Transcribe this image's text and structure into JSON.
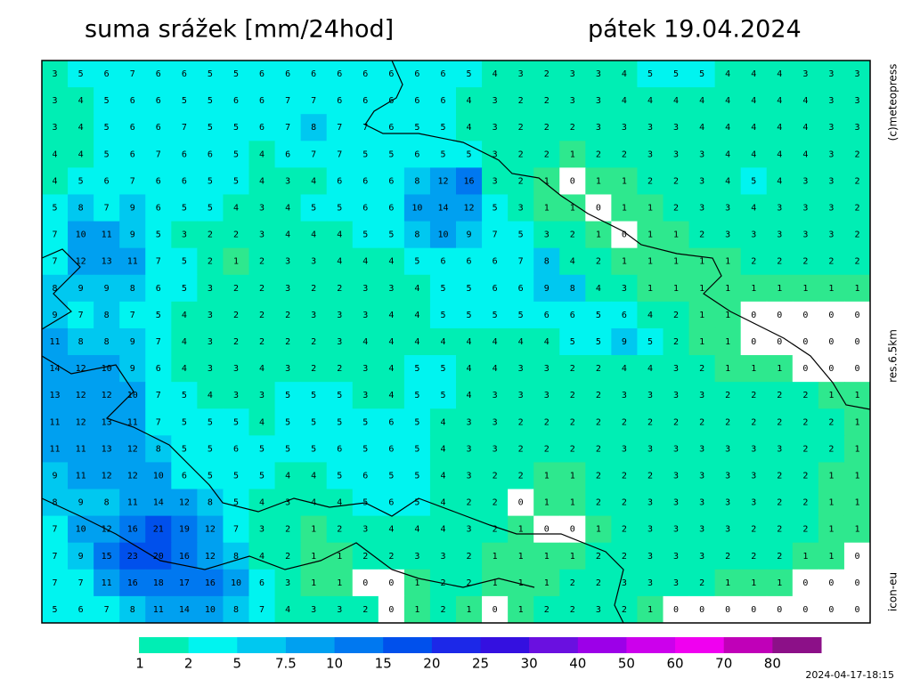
{
  "header": {
    "title": "suma srážek [mm/24hod]",
    "date": "pátek 19.04.2024"
  },
  "side_labels": {
    "copyright": "(c)meteopress",
    "resolution": "res.6.5km",
    "model": "icon-eu"
  },
  "timestamp": "2024-04-17-18:15",
  "grid": {
    "rows": [
      [
        3,
        5,
        6,
        7,
        6,
        6,
        5,
        5,
        6,
        6,
        6,
        6,
        6,
        6,
        6,
        6,
        5,
        4,
        3,
        2,
        3,
        3,
        4,
        5,
        5,
        5,
        4,
        4,
        4,
        3,
        3,
        3
      ],
      [
        3,
        4,
        5,
        6,
        6,
        5,
        5,
        6,
        6,
        7,
        7,
        6,
        6,
        6,
        6,
        6,
        4,
        3,
        2,
        2,
        3,
        3,
        4,
        4,
        4,
        4,
        4,
        4,
        4,
        4,
        3,
        3
      ],
      [
        3,
        4,
        5,
        6,
        6,
        7,
        5,
        5,
        6,
        7,
        8,
        7,
        7,
        6,
        5,
        5,
        4,
        3,
        2,
        2,
        2,
        3,
        3,
        3,
        3,
        4,
        4,
        4,
        4,
        4,
        3,
        3
      ],
      [
        4,
        4,
        5,
        6,
        7,
        6,
        6,
        5,
        4,
        6,
        7,
        7,
        5,
        5,
        6,
        5,
        5,
        3,
        2,
        2,
        1,
        2,
        2,
        3,
        3,
        3,
        4,
        4,
        4,
        4,
        3,
        2
      ],
      [
        4,
        5,
        6,
        7,
        6,
        6,
        5,
        5,
        4,
        3,
        4,
        6,
        6,
        6,
        8,
        12,
        16,
        3,
        2,
        1,
        0,
        1,
        1,
        2,
        2,
        3,
        4,
        5,
        4,
        3,
        3,
        2
      ],
      [
        5,
        8,
        7,
        9,
        6,
        5,
        5,
        4,
        3,
        4,
        5,
        5,
        6,
        6,
        10,
        14,
        12,
        5,
        3,
        1,
        1,
        0,
        1,
        1,
        2,
        3,
        3,
        4,
        3,
        3,
        3,
        2
      ],
      [
        7,
        10,
        11,
        9,
        5,
        3,
        2,
        2,
        3,
        4,
        4,
        4,
        5,
        5,
        8,
        10,
        9,
        7,
        5,
        3,
        2,
        1,
        0,
        1,
        1,
        2,
        3,
        3,
        3,
        3,
        3,
        2
      ],
      [
        7,
        12,
        13,
        11,
        7,
        5,
        2,
        1,
        2,
        3,
        3,
        4,
        4,
        4,
        5,
        6,
        6,
        6,
        7,
        8,
        4,
        2,
        1,
        1,
        1,
        1,
        1,
        2,
        2,
        2,
        2,
        2
      ],
      [
        8,
        9,
        9,
        8,
        6,
        5,
        3,
        2,
        2,
        3,
        2,
        2,
        3,
        3,
        4,
        5,
        5,
        6,
        6,
        9,
        8,
        4,
        3,
        1,
        1,
        1,
        1,
        1,
        1,
        1,
        1,
        1
      ],
      [
        9,
        7,
        8,
        7,
        5,
        4,
        3,
        2,
        2,
        2,
        3,
        3,
        3,
        4,
        4,
        5,
        5,
        5,
        5,
        6,
        6,
        5,
        6,
        4,
        2,
        1,
        1,
        0,
        0,
        0,
        0,
        0
      ],
      [
        11,
        8,
        8,
        9,
        7,
        4,
        3,
        2,
        2,
        2,
        2,
        3,
        4,
        4,
        4,
        4,
        4,
        4,
        4,
        4,
        5,
        5,
        9,
        5,
        2,
        1,
        1,
        0,
        0,
        0,
        0,
        0
      ],
      [
        14,
        12,
        10,
        9,
        6,
        4,
        3,
        3,
        4,
        3,
        2,
        2,
        3,
        4,
        5,
        5,
        4,
        4,
        3,
        3,
        2,
        2,
        4,
        4,
        3,
        2,
        1,
        1,
        1,
        0,
        0,
        0
      ],
      [
        13,
        12,
        12,
        10,
        7,
        5,
        4,
        3,
        3,
        5,
        5,
        5,
        3,
        4,
        5,
        5,
        4,
        3,
        3,
        3,
        2,
        2,
        3,
        3,
        3,
        3,
        2,
        2,
        2,
        2,
        1,
        1
      ],
      [
        11,
        12,
        13,
        11,
        7,
        5,
        5,
        5,
        4,
        5,
        5,
        5,
        5,
        6,
        5,
        4,
        3,
        3,
        2,
        2,
        2,
        2,
        2,
        2,
        2,
        2,
        2,
        2,
        2,
        2,
        2,
        1
      ],
      [
        11,
        11,
        13,
        12,
        8,
        5,
        5,
        6,
        5,
        5,
        5,
        6,
        5,
        6,
        5,
        4,
        3,
        3,
        2,
        2,
        2,
        2,
        3,
        3,
        3,
        3,
        3,
        3,
        3,
        2,
        2,
        1
      ],
      [
        9,
        11,
        12,
        12,
        10,
        6,
        5,
        5,
        5,
        4,
        4,
        5,
        6,
        5,
        5,
        4,
        3,
        2,
        2,
        1,
        1,
        2,
        2,
        2,
        3,
        3,
        3,
        3,
        2,
        2,
        1,
        1
      ],
      [
        8,
        9,
        8,
        11,
        14,
        12,
        8,
        5,
        4,
        3,
        4,
        4,
        5,
        6,
        5,
        4,
        2,
        2,
        0,
        1,
        1,
        2,
        2,
        3,
        3,
        3,
        3,
        3,
        2,
        2,
        1,
        1
      ],
      [
        7,
        10,
        12,
        16,
        21,
        19,
        12,
        7,
        3,
        2,
        1,
        2,
        3,
        4,
        4,
        4,
        3,
        2,
        1,
        0,
        0,
        1,
        2,
        3,
        3,
        3,
        3,
        2,
        2,
        2,
        1,
        1
      ],
      [
        7,
        9,
        15,
        23,
        20,
        16,
        12,
        8,
        4,
        2,
        1,
        1,
        2,
        2,
        3,
        3,
        2,
        1,
        1,
        1,
        1,
        2,
        2,
        3,
        3,
        3,
        2,
        2,
        2,
        1,
        1,
        0
      ],
      [
        7,
        7,
        11,
        16,
        18,
        17,
        16,
        10,
        6,
        3,
        1,
        1,
        0,
        0,
        1,
        2,
        2,
        1,
        1,
        1,
        2,
        2,
        3,
        3,
        3,
        2,
        1,
        1,
        1,
        0,
        0,
        0
      ],
      [
        5,
        6,
        7,
        8,
        11,
        14,
        10,
        8,
        7,
        4,
        3,
        3,
        2,
        0,
        1,
        2,
        1,
        0,
        1,
        2,
        2,
        3,
        2,
        1,
        0,
        0,
        0,
        0,
        0,
        0,
        0,
        0
      ]
    ]
  },
  "legend": {
    "levels": [
      1,
      2,
      5,
      7.5,
      10,
      15,
      20,
      25,
      30,
      40,
      50,
      60,
      70,
      80
    ],
    "colors": [
      "#2ee88e",
      "#00eeb4",
      "#00f4f0",
      "#00c8f0",
      "#00a0f0",
      "#0078f0",
      "#0050ec",
      "#1c28e8",
      "#3410e0",
      "#6a10e0",
      "#9c00e8",
      "#cc00ec",
      "#f000f0",
      "#c000b8",
      "#8c1088"
    ]
  }
}
